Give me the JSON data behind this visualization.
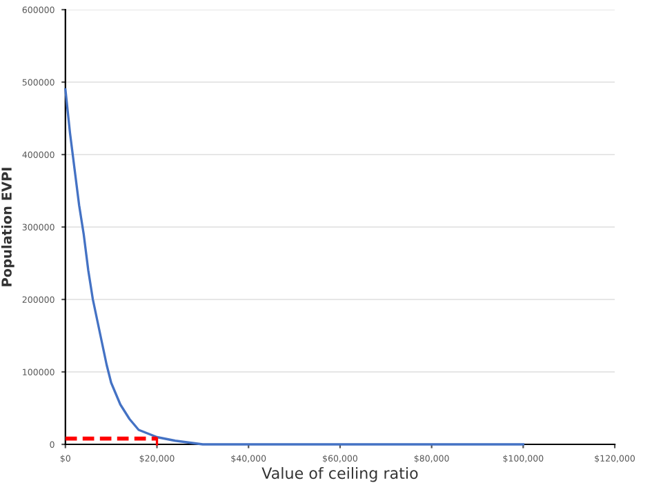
{
  "chart_data": {
    "type": "line",
    "xlabel": "Value of ceiling ratio",
    "ylabel": "Population EVPI",
    "series": [
      {
        "color": "#4472c4",
        "x": [
          0,
          1000,
          2000,
          3000,
          4000,
          5000,
          6000,
          7000,
          8000,
          9000,
          10000,
          12000,
          14000,
          16000,
          18000,
          20000,
          24000,
          30000,
          40000,
          50000,
          60000,
          80000,
          100000
        ],
        "values": [
          490000,
          430000,
          380000,
          330000,
          290000,
          240000,
          200000,
          170000,
          140000,
          110000,
          85000,
          55000,
          35000,
          20000,
          15000,
          10000,
          5000,
          0,
          0,
          0,
          0,
          0,
          0
        ]
      },
      {
        "color": "#ff0000",
        "line_style": "dashed",
        "x": [
          0,
          20000
        ],
        "values": [
          8000,
          8000
        ]
      },
      {
        "color": "#ff0000",
        "line_style": "solid",
        "x": [
          20000,
          20000
        ],
        "values": [
          8000,
          0
        ]
      }
    ],
    "xlim": [
      0,
      120000
    ],
    "ylim": [
      0,
      600000
    ],
    "xticks": [
      {
        "value": 0,
        "label": "$0"
      },
      {
        "value": 20000,
        "label": "$20,000"
      },
      {
        "value": 40000,
        "label": "$40,000"
      },
      {
        "value": 60000,
        "label": "$60,000"
      },
      {
        "value": 80000,
        "label": "$80,000"
      },
      {
        "value": 100000,
        "label": "$100,000"
      },
      {
        "value": 120000,
        "label": "$120,000"
      }
    ],
    "yticks": [
      0,
      100000,
      200000,
      300000,
      400000,
      500000,
      600000
    ],
    "grid": "y",
    "marker": "none"
  }
}
